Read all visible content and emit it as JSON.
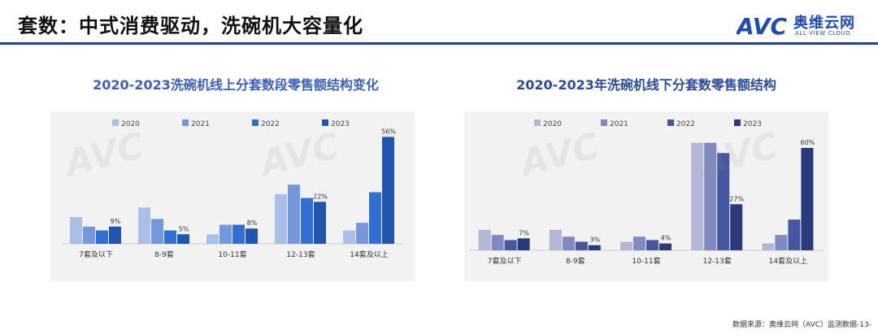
{
  "header": {
    "title": "套数：中式消费驱动，洗碗机大容量化",
    "logo_text": "AVC",
    "logo_cn": "奥维云网",
    "logo_en": "ALL VIEW CLOUD"
  },
  "footer": {
    "source": "数据来源：奥维云网（AVC）监测数据-13-"
  },
  "colors": {
    "rule": "#1f3f9a",
    "left_series": [
      "#a9bfe8",
      "#7597dd",
      "#2f6fd6",
      "#1e56b0"
    ],
    "right_series": [
      "#b4b6d6",
      "#7f89c2",
      "#4657a0",
      "#2b3a7c"
    ]
  },
  "chart_data": [
    {
      "type": "bar",
      "title": "2020-2023洗碗机线上分套数段零售额结构变化",
      "categories": [
        "7套及以下",
        "8-9套",
        "10-11套",
        "12-13套",
        "14套及以上"
      ],
      "series": [
        {
          "name": "2020",
          "values": [
            14,
            19,
            5,
            26,
            7
          ]
        },
        {
          "name": "2021",
          "values": [
            9,
            13,
            10,
            31,
            11
          ]
        },
        {
          "name": "2022",
          "values": [
            7,
            7,
            10,
            24,
            27
          ]
        },
        {
          "name": "2023",
          "values": [
            9,
            5,
            8,
            22,
            56
          ]
        }
      ],
      "data_labels": [
        "9%",
        "5%",
        "8%",
        "22%",
        "56%"
      ],
      "ylim": [
        0,
        60
      ],
      "legend_position": "top",
      "grid": false
    },
    {
      "type": "bar",
      "title": "2020-2023年洗碗机线下分套数零售额结构",
      "categories": [
        "7套及以下",
        "8-9套",
        "10-11套",
        "12-13套",
        "14套及以上"
      ],
      "series": [
        {
          "name": "2020",
          "values": [
            12,
            12,
            5,
            63,
            4
          ]
        },
        {
          "name": "2021",
          "values": [
            9,
            8,
            8,
            63,
            9
          ]
        },
        {
          "name": "2022",
          "values": [
            6,
            5,
            6,
            57,
            18
          ]
        },
        {
          "name": "2023",
          "values": [
            7,
            3,
            4,
            27,
            60
          ]
        }
      ],
      "data_labels": [
        "7%",
        "3%",
        "4%",
        "27%",
        "60%"
      ],
      "ylim": [
        0,
        70
      ],
      "legend_position": "top",
      "grid": false
    }
  ]
}
